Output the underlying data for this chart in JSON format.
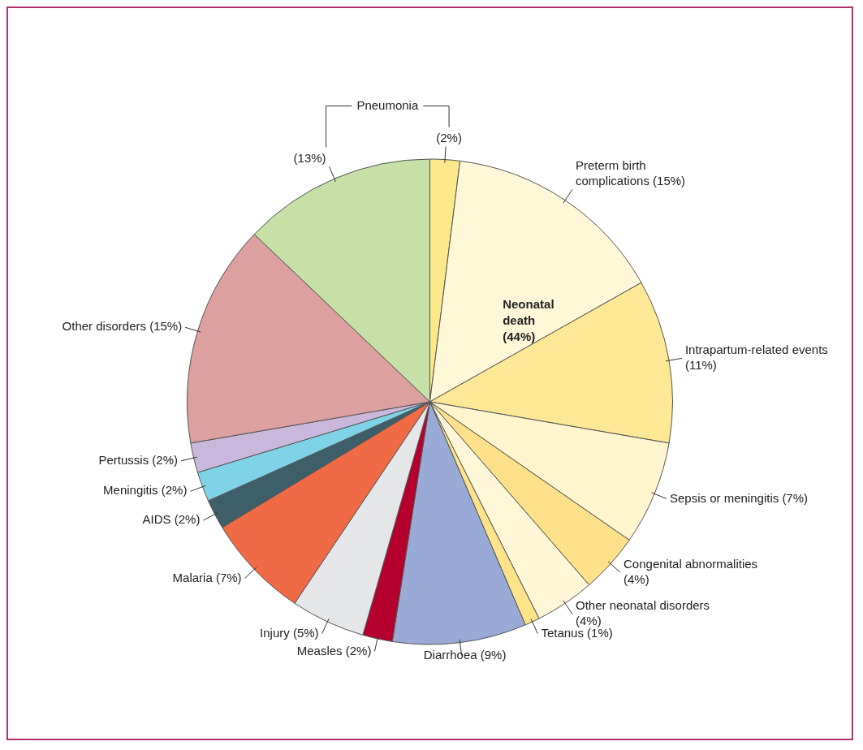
{
  "chart_data": {
    "type": "pie",
    "categories": [
      "(2%)",
      "Preterm birth complications (15%)",
      "Intrapartum-related events (11%)",
      "Sepsis or meningitis (7%)",
      "Congenital abnormalities (4%)",
      "Other neonatal disorders (4%)",
      "Tetanus (1%)",
      "Diarrhoea (9%)",
      "Measles (2%)",
      "Injury (5%)",
      "Malaria (7%)",
      "AIDS (2%)",
      "Meningitis (2%)",
      "Pertussis (2%)",
      "Other disorders (15%)",
      "(13%)"
    ],
    "values": [
      2,
      15,
      11,
      7,
      4,
      4,
      1,
      9,
      2,
      5,
      7,
      2,
      2,
      2,
      15,
      13
    ],
    "colors": [
      "#fde98c",
      "#fff8d8",
      "#fde896",
      "#fff6cf",
      "#fde08a",
      "#fff7d8",
      "#fde38a",
      "#9aaad6",
      "#b5002e",
      "#e4e6e8",
      "#f06a45",
      "#3e5e6a",
      "#7fd3e6",
      "#c9b8dc",
      "#dca09e",
      "#c6e0a8"
    ],
    "annotations": [
      "Pneumonia",
      "Neonatal death (44%)"
    ],
    "legend": false
  }
}
